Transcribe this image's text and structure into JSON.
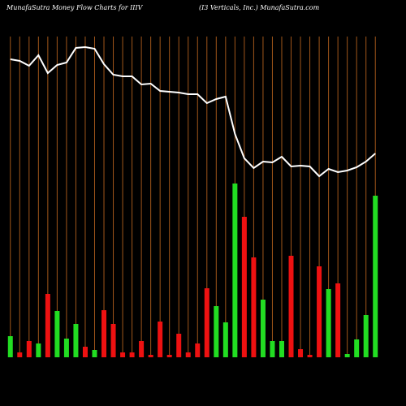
{
  "chart_data": {
    "type": "bar",
    "title": "MunafaSutra  Money Flow  Charts for IIIV",
    "subtitle": "(I3 Verticals, Inc.) MunafaSutra.com",
    "values": [
      26,
      6,
      20,
      17,
      78,
      57,
      23,
      41,
      13,
      9,
      58,
      41,
      6,
      6,
      20,
      3,
      44,
      3,
      29,
      6,
      17,
      85,
      63,
      43,
      214,
      173,
      123,
      71,
      20,
      20,
      125,
      10,
      3,
      112,
      84,
      91,
      4,
      22,
      52,
      199
    ],
    "colors": [
      "#22dd22",
      "#ee1111",
      "#ee1111",
      "#22dd22",
      "#ee1111",
      "#22dd22",
      "#22dd22",
      "#22dd22",
      "#ee1111",
      "#22dd22",
      "#ee1111",
      "#ee1111",
      "#ee1111",
      "#ee1111",
      "#ee1111",
      "#ee1111",
      "#ee1111",
      "#ee1111",
      "#ee1111",
      "#ee1111",
      "#ee1111",
      "#ee1111",
      "#22dd22",
      "#22dd22",
      "#22dd22",
      "#ee1111",
      "#ee1111",
      "#22dd22",
      "#22dd22",
      "#22dd22",
      "#ee1111",
      "#ee1111",
      "#ee1111",
      "#ee1111",
      "#22dd22",
      "#ee1111",
      "#22dd22",
      "#22dd22",
      "#22dd22",
      "#22dd22"
    ],
    "line_values": [
      367,
      365,
      359,
      372,
      350,
      360,
      363,
      381,
      382,
      380,
      361,
      348,
      346,
      346,
      336,
      337,
      328,
      327,
      326,
      324,
      324,
      313,
      318,
      321,
      275,
      245,
      233,
      241,
      240,
      247,
      235,
      236,
      235,
      223,
      232,
      228,
      230,
      234,
      241,
      251
    ],
    "line_color": "#ffffff",
    "gridline_color": "#a0561a",
    "ylim": [
      0,
      400
    ]
  }
}
